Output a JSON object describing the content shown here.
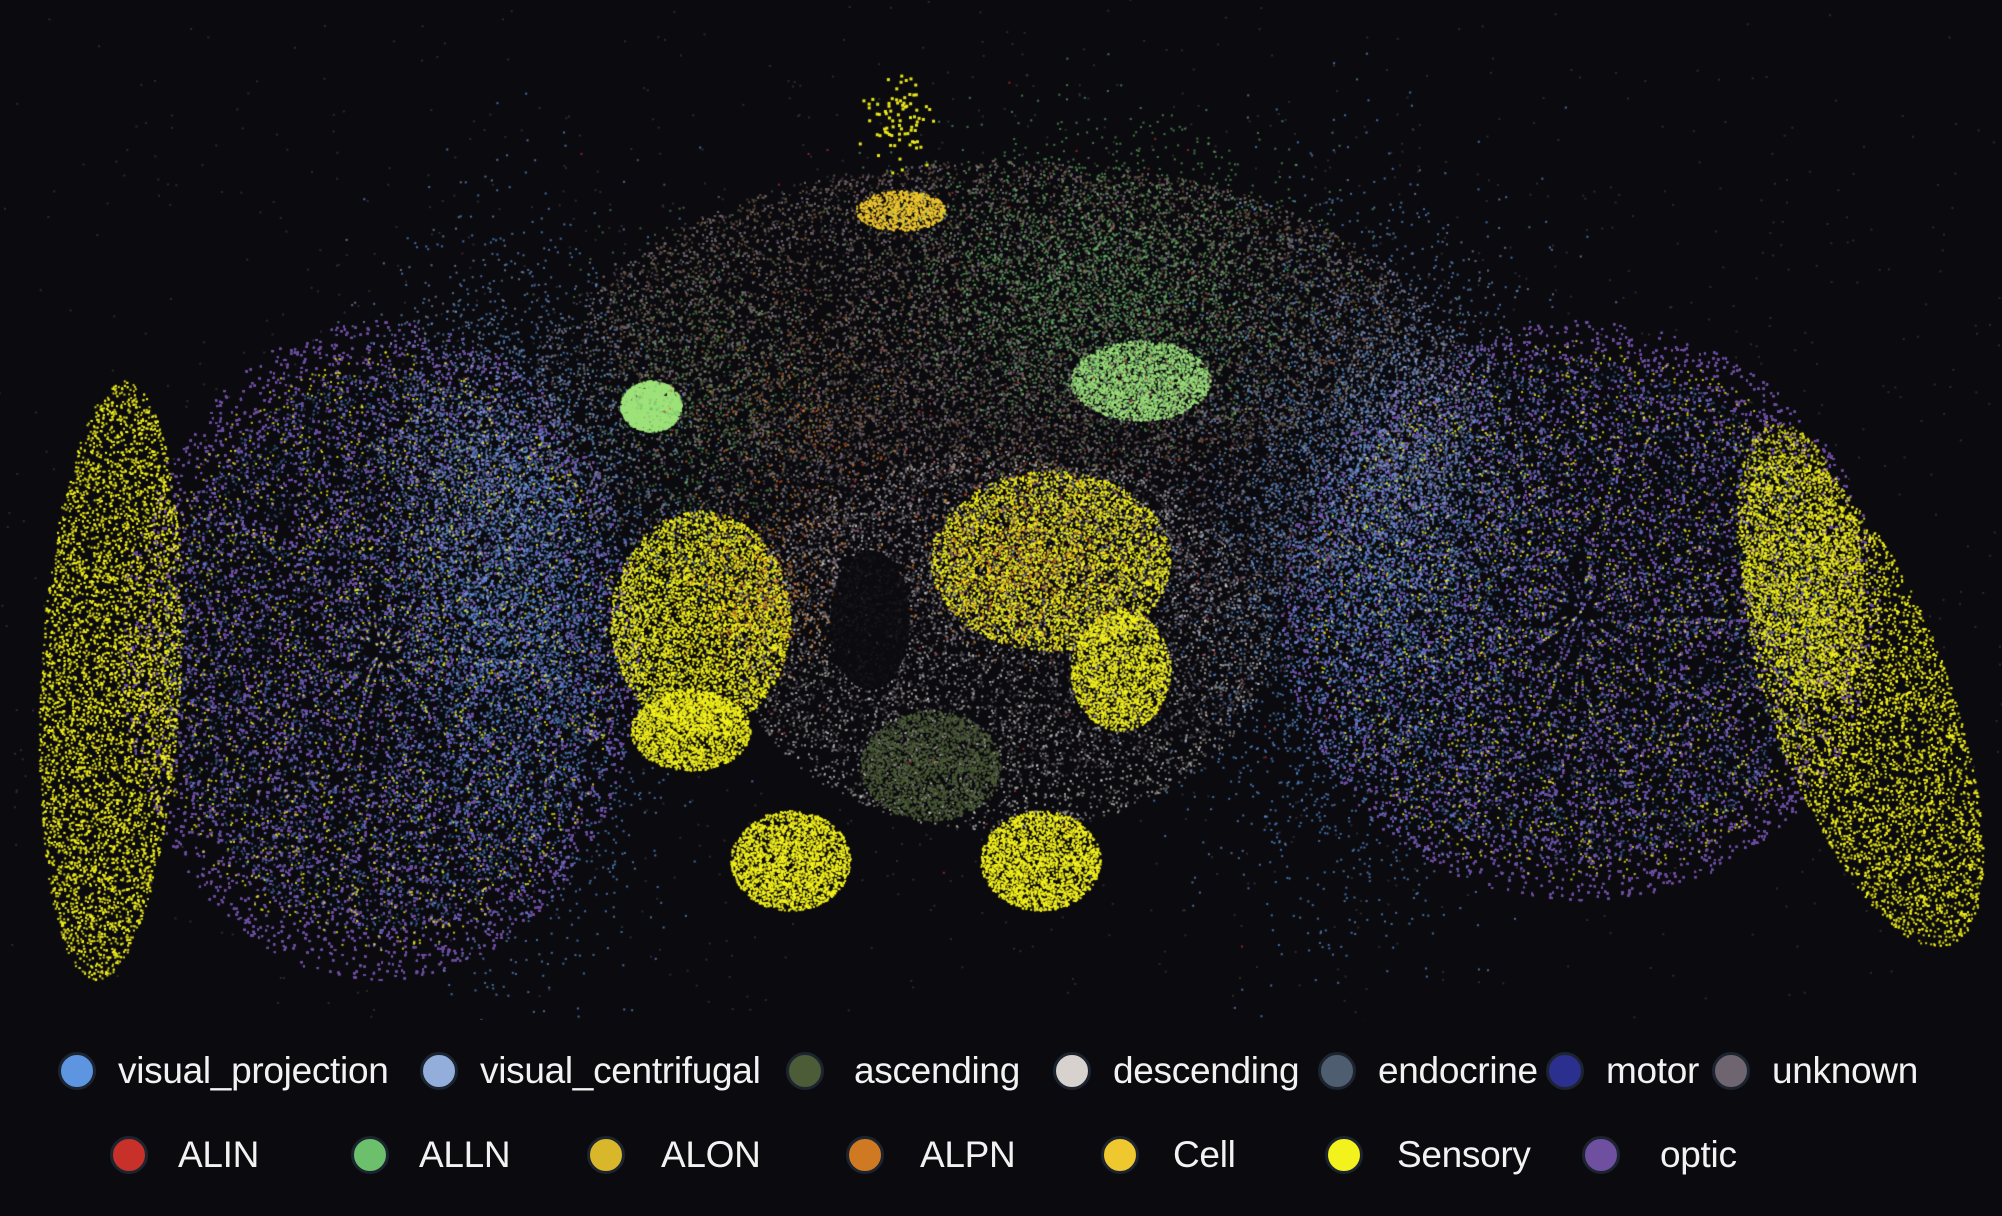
{
  "legend": {
    "row1": [
      {
        "label": "visual_projection",
        "color": "#5e95e0"
      },
      {
        "label": "visual_centrifugal",
        "color": "#93aedb"
      },
      {
        "label": "ascending",
        "color": "#4b5c36"
      },
      {
        "label": "descending",
        "color": "#d8d2cf"
      },
      {
        "label": "endocrine",
        "color": "#4e5e70"
      },
      {
        "label": "motor",
        "color": "#2b2f8e"
      },
      {
        "label": "unknown",
        "color": "#6f6570"
      }
    ],
    "row2": [
      {
        "label": "ALIN",
        "color": "#c8302a"
      },
      {
        "label": "ALLN",
        "color": "#6cc06c"
      },
      {
        "label": "ALON",
        "color": "#d9b72a"
      },
      {
        "label": "ALPN",
        "color": "#cf7a22"
      },
      {
        "label": "Cell",
        "color": "#efc72e"
      },
      {
        "label": "Sensory",
        "color": "#f4f21c"
      },
      {
        "label": "optic",
        "color": "#6e4fa0"
      }
    ]
  }
}
